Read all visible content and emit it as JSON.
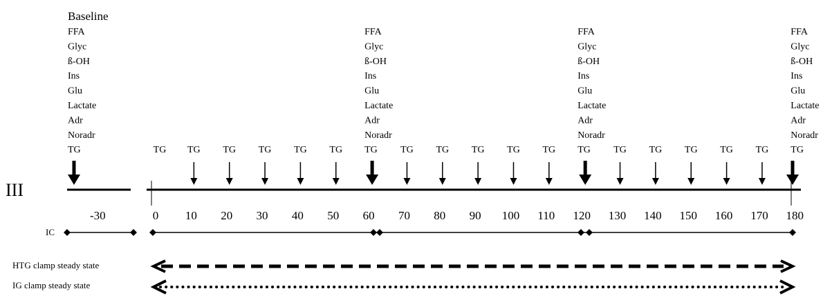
{
  "baseline": {
    "title": "Baseline",
    "measures": [
      "FFA",
      "Glyc",
      "ß-OH",
      "Ins",
      "Glu",
      "Lactate",
      "Adr",
      "Noradr",
      "TG"
    ]
  },
  "hour_measures": [
    "FFA",
    "Glyc",
    "ß-OH",
    "Ins",
    "Glu",
    "Lactate",
    "Adr",
    "Noradr",
    "TG"
  ],
  "hour_sample_times": [
    60,
    120,
    180
  ],
  "tg_label": "TG",
  "tg_sample_times": [
    0,
    10,
    20,
    30,
    40,
    50,
    70,
    80,
    90,
    100,
    110,
    130,
    140,
    150,
    160,
    170
  ],
  "panel_label": "III",
  "pre_tick": "-30",
  "ticks": [
    "0",
    "10",
    "20",
    "30",
    "40",
    "50",
    "60",
    "70",
    "80",
    "90",
    "100",
    "110",
    "120",
    "130",
    "140",
    "150",
    "160",
    "170",
    "180"
  ],
  "ic_label": "IC",
  "steady_states": [
    {
      "label": "HTG clamp steady state",
      "style": "dashed"
    },
    {
      "label": "IG clamp steady state",
      "style": "dotted"
    }
  ]
}
